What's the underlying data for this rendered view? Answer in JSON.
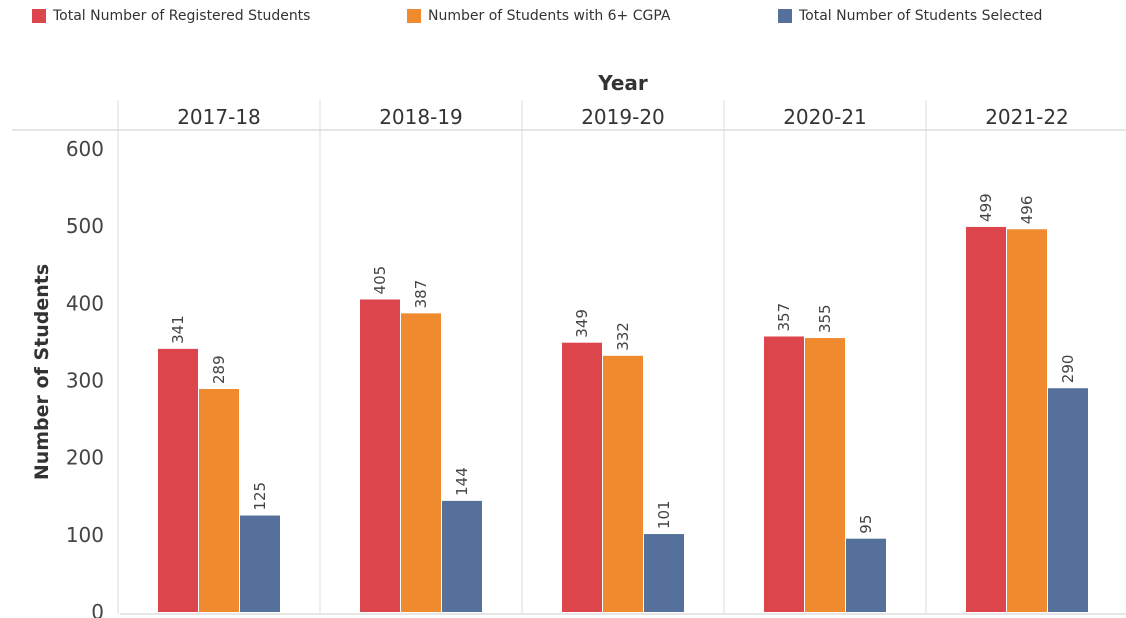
{
  "chart_data": {
    "type": "bar",
    "xlabel": "Year",
    "ylabel": "Number of Students",
    "categories": [
      "2017-18",
      "2018-19",
      "2019-20",
      "2020-21",
      "2021-22"
    ],
    "series": [
      {
        "name": "Total Number of Registered Students",
        "color": "#dc454b",
        "values": [
          341,
          405,
          349,
          357,
          499
        ]
      },
      {
        "name": "Number of Students with 6+ CGPA",
        "color": "#ef8a2e",
        "values": [
          289,
          387,
          332,
          355,
          496
        ]
      },
      {
        "name": "Total Number of Students Selected",
        "color": "#55709a",
        "values": [
          125,
          144,
          101,
          95,
          290
        ]
      }
    ],
    "yticks": [
      0,
      100,
      200,
      300,
      400,
      500,
      600
    ],
    "ylim": [
      0,
      600
    ],
    "legend_position": "top",
    "grid": false
  }
}
